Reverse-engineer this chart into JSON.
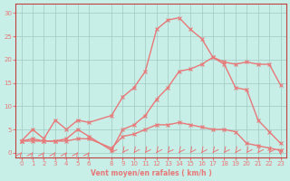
{
  "xlabel": "Vent moyen/en rafales ( km/h )",
  "ylabel": "",
  "background_color": "#c8eee8",
  "grid_color": "#a0c8c0",
  "line_color": "#e87878",
  "ylim": [
    -1,
    32
  ],
  "xlim": [
    -0.5,
    23.5
  ],
  "yticks": [
    0,
    5,
    10,
    15,
    20,
    25,
    30
  ],
  "xticks": [
    0,
    1,
    2,
    3,
    4,
    5,
    6,
    8,
    9,
    10,
    11,
    12,
    13,
    14,
    15,
    16,
    17,
    18,
    19,
    20,
    21,
    22,
    23
  ],
  "hours": [
    0,
    1,
    2,
    3,
    4,
    5,
    6,
    8,
    9,
    10,
    11,
    12,
    13,
    14,
    15,
    16,
    17,
    18,
    19,
    20,
    21,
    22,
    23
  ],
  "wind_avg": [
    2.5,
    3.0,
    2.5,
    2.5,
    3.0,
    5.0,
    3.5,
    0.5,
    5.0,
    6.0,
    8.0,
    11.5,
    14.0,
    17.5,
    18.0,
    19.0,
    20.5,
    19.0,
    14.0,
    13.5,
    7.0,
    4.5,
    2.0
  ],
  "wind_gust": [
    2.5,
    5.0,
    3.0,
    7.0,
    5.0,
    7.0,
    6.5,
    8.0,
    12.0,
    14.0,
    17.5,
    26.5,
    28.5,
    29.0,
    26.5,
    24.5,
    20.5,
    19.5,
    19.0,
    19.5,
    19.0,
    19.0,
    14.5
  ],
  "wind_low": [
    2.5,
    2.5,
    2.5,
    2.5,
    2.5,
    3.0,
    3.0,
    1.0,
    3.5,
    4.0,
    5.0,
    6.0,
    6.0,
    6.5,
    6.0,
    5.5,
    5.0,
    5.0,
    4.5,
    2.0,
    1.5,
    1.0,
    0.5
  ],
  "arrows_up": [
    0,
    1,
    2,
    3,
    4,
    5,
    6
  ],
  "arrows_down": [
    8,
    9,
    10,
    11,
    12,
    13,
    14,
    15,
    16,
    17,
    18,
    19,
    20,
    21,
    22,
    23
  ]
}
